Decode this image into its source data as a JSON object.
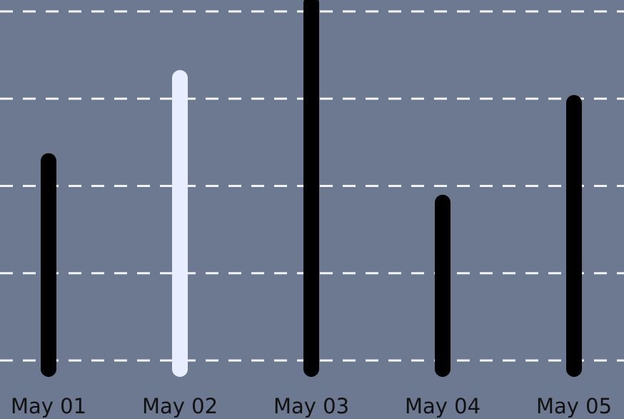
{
  "chart_data": {
    "type": "bar",
    "categories": [
      "May 01",
      "May 02",
      "May 03",
      "May 04",
      "May 05"
    ],
    "series": [
      {
        "values": [
          2.4,
          3.4,
          4.3,
          1.9,
          3.1
        ],
        "highlight_index": 1
      }
    ],
    "title": "",
    "xlabel": "",
    "ylabel": "",
    "ylim": [
      0,
      4.2
    ],
    "grid": true
  },
  "colors": {
    "background": "#6d7891",
    "bar": "#000000",
    "highlight_bar": "#e8eeff",
    "grid": "#f2f4f8",
    "highlight_label": "#f2f5ff",
    "label": "#111111"
  }
}
